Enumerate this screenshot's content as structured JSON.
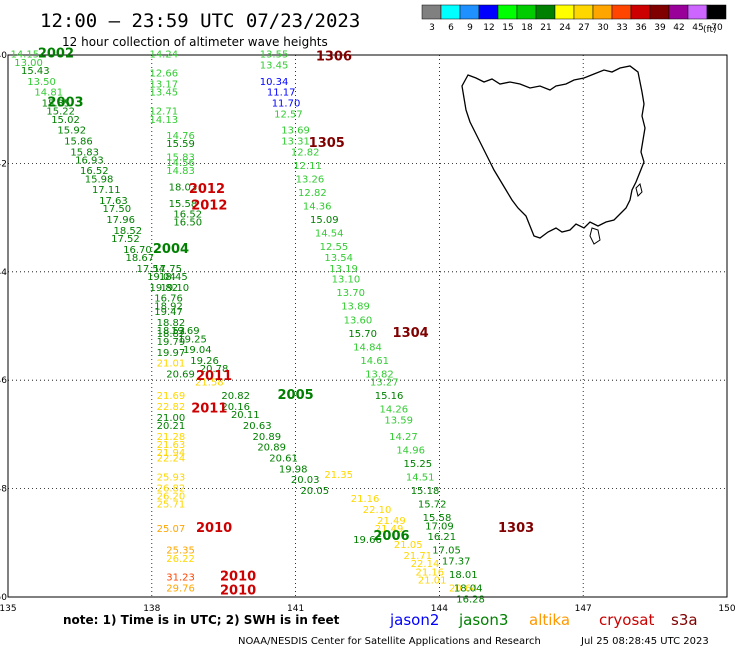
{
  "header": {
    "title": "12:00 – 23:59 UTC 07/23/2023",
    "subtitle": "12 hour collection of altimeter wave heights"
  },
  "colorbar": {
    "unit": "(ft)",
    "entries": [
      {
        "label": "3",
        "color": "#808080"
      },
      {
        "label": "6",
        "color": "#00ffff"
      },
      {
        "label": "9",
        "color": "#1e90ff"
      },
      {
        "label": "12",
        "color": "#0000ff"
      },
      {
        "label": "15",
        "color": "#00ff00"
      },
      {
        "label": "18",
        "color": "#00cc00"
      },
      {
        "label": "21",
        "color": "#008000"
      },
      {
        "label": "24",
        "color": "#ffff00"
      },
      {
        "label": "27",
        "color": "#ffd700"
      },
      {
        "label": "30",
        "color": "#ffa500"
      },
      {
        "label": "33",
        "color": "#ff4500"
      },
      {
        "label": "36",
        "color": "#cc0000"
      },
      {
        "label": "39",
        "color": "#800000"
      },
      {
        "label": "42",
        "color": "#990099"
      },
      {
        "label": "45",
        "color": "#cc66ff"
      },
      {
        "label": "70",
        "color": "#000000"
      }
    ]
  },
  "footer": {
    "note": "note: 1) Time is in UTC; 2) SWH is in feet",
    "legend": [
      {
        "label": "jason2",
        "color": "#0000ff"
      },
      {
        "label": "jason3",
        "color": "#008000"
      },
      {
        "label": "altika",
        "color": "#ff9900"
      },
      {
        "label": "cryosat",
        "color": "#cc0000"
      },
      {
        "label": "s3a",
        "color": "#800000"
      }
    ],
    "credit": "NOAA/NESDIS Center for Satellite Applications and Research",
    "timestamp": "Jul 25 08:28:45 UTC 2023"
  },
  "chart_data": {
    "type": "scatter",
    "xlim": [
      135,
      150
    ],
    "ylim": [
      -50,
      -40
    ],
    "xticks": [
      135,
      138,
      141,
      144,
      147,
      150
    ],
    "yticks": [
      -40,
      -42,
      -44,
      -46,
      -48,
      -50
    ],
    "grid": true,
    "labels": [
      {
        "x": 135.35,
        "y": -40.05,
        "t": "14.15",
        "c": "#33cc33"
      },
      {
        "x": 135.43,
        "y": -40.2,
        "t": "13.00",
        "c": "#33cc33"
      },
      {
        "x": 135.57,
        "y": -40.35,
        "t": "15.43",
        "c": "#008000"
      },
      {
        "x": 135.7,
        "y": -40.55,
        "t": "13.50",
        "c": "#33cc33"
      },
      {
        "x": 135.85,
        "y": -40.75,
        "t": "14.81",
        "c": "#33cc33"
      },
      {
        "x": 136.0,
        "y": -40.95,
        "t": "15.35",
        "c": "#008000"
      },
      {
        "x": 136.1,
        "y": -41.1,
        "t": "15.22",
        "c": "#008000"
      },
      {
        "x": 136.2,
        "y": -41.25,
        "t": "15.02",
        "c": "#008000"
      },
      {
        "x": 136.33,
        "y": -41.45,
        "t": "15.92",
        "c": "#008000"
      },
      {
        "x": 136.47,
        "y": -41.65,
        "t": "15.86",
        "c": "#008000"
      },
      {
        "x": 136.6,
        "y": -41.85,
        "t": "15.83",
        "c": "#008000"
      },
      {
        "x": 136.7,
        "y": -42.0,
        "t": "16.93",
        "c": "#008000"
      },
      {
        "x": 136.8,
        "y": -42.2,
        "t": "16.52",
        "c": "#008000"
      },
      {
        "x": 136.9,
        "y": -42.35,
        "t": "15.98",
        "c": "#008000"
      },
      {
        "x": 137.05,
        "y": -42.55,
        "t": "17.11",
        "c": "#008000"
      },
      {
        "x": 137.2,
        "y": -42.75,
        "t": "17.63",
        "c": "#008000"
      },
      {
        "x": 137.27,
        "y": -42.9,
        "t": "17.50",
        "c": "#008000"
      },
      {
        "x": 137.35,
        "y": -43.1,
        "t": "17.96",
        "c": "#008000"
      },
      {
        "x": 137.5,
        "y": -43.3,
        "t": "18.52",
        "c": "#008000"
      },
      {
        "x": 137.45,
        "y": -43.45,
        "t": "17.52",
        "c": "#008000"
      },
      {
        "x": 137.7,
        "y": -43.65,
        "t": "16.70",
        "c": "#008000"
      },
      {
        "x": 137.75,
        "y": -43.8,
        "t": "18.67",
        "c": "#008000"
      },
      {
        "x": 137.98,
        "y": -44.0,
        "t": "17.54",
        "c": "#008000"
      },
      {
        "x": 138.33,
        "y": -44.0,
        "t": "17.75",
        "c": "#008000"
      },
      {
        "x": 138.2,
        "y": -44.15,
        "t": "19.04",
        "c": "#008000"
      },
      {
        "x": 138.45,
        "y": -44.15,
        "t": "18.45",
        "c": "#008000"
      },
      {
        "x": 138.25,
        "y": -44.35,
        "t": "19.82",
        "c": "#008000"
      },
      {
        "x": 138.48,
        "y": -44.35,
        "t": "19.10",
        "c": "#008000"
      },
      {
        "x": 138.35,
        "y": -44.55,
        "t": "16.76",
        "c": "#008000"
      },
      {
        "x": 138.35,
        "y": -44.7,
        "t": "18.92",
        "c": "#008000"
      },
      {
        "x": 138.35,
        "y": -44.8,
        "t": "19.47",
        "c": "#008000"
      },
      {
        "x": 138.4,
        "y": -45.0,
        "t": "18.82",
        "c": "#008000"
      },
      {
        "x": 138.4,
        "y": -45.15,
        "t": "18.52",
        "c": "#008000"
      },
      {
        "x": 138.7,
        "y": -45.15,
        "t": "19.69",
        "c": "#008000"
      },
      {
        "x": 138.4,
        "y": -45.2,
        "t": "18.82",
        "c": "#008000"
      },
      {
        "x": 138.4,
        "y": -45.35,
        "t": "19.79",
        "c": "#008000"
      },
      {
        "x": 138.85,
        "y": -45.3,
        "t": "19.25",
        "c": "#008000"
      },
      {
        "x": 138.95,
        "y": -45.5,
        "t": "19.04",
        "c": "#008000"
      },
      {
        "x": 138.4,
        "y": -45.55,
        "t": "19.97",
        "c": "#008000"
      },
      {
        "x": 139.1,
        "y": -45.7,
        "t": "19.26",
        "c": "#008000"
      },
      {
        "x": 138.4,
        "y": -45.75,
        "t": "21.01",
        "c": "#ffd700"
      },
      {
        "x": 139.3,
        "y": -45.85,
        "t": "20.78",
        "c": "#008000"
      },
      {
        "x": 138.6,
        "y": -45.95,
        "t": "20.69",
        "c": "#008000"
      },
      {
        "x": 139.2,
        "y": -46.1,
        "t": "21.58",
        "c": "#ffd700"
      },
      {
        "x": 138.4,
        "y": -46.35,
        "t": "21.69",
        "c": "#ffd700"
      },
      {
        "x": 139.75,
        "y": -46.35,
        "t": "20.82",
        "c": "#008000"
      },
      {
        "x": 138.4,
        "y": -46.55,
        "t": "22.82",
        "c": "#ffd700"
      },
      {
        "x": 139.75,
        "y": -46.55,
        "t": "20.16",
        "c": "#008000"
      },
      {
        "x": 138.4,
        "y": -46.75,
        "t": "21.00",
        "c": "#008000"
      },
      {
        "x": 139.95,
        "y": -46.7,
        "t": "20.11",
        "c": "#008000"
      },
      {
        "x": 138.4,
        "y": -46.9,
        "t": "20.21",
        "c": "#008000"
      },
      {
        "x": 140.2,
        "y": -46.9,
        "t": "20.63",
        "c": "#008000"
      },
      {
        "x": 138.4,
        "y": -47.1,
        "t": "21.28",
        "c": "#ffd700"
      },
      {
        "x": 140.4,
        "y": -47.1,
        "t": "20.89",
        "c": "#008000"
      },
      {
        "x": 138.4,
        "y": -47.25,
        "t": "21.63",
        "c": "#ffd700"
      },
      {
        "x": 140.5,
        "y": -47.3,
        "t": "20.89",
        "c": "#008000"
      },
      {
        "x": 138.4,
        "y": -47.4,
        "t": "21.94",
        "c": "#ffd700"
      },
      {
        "x": 140.75,
        "y": -47.5,
        "t": "20.61",
        "c": "#008000"
      },
      {
        "x": 138.4,
        "y": -47.5,
        "t": "22.24",
        "c": "#ffd700"
      },
      {
        "x": 140.95,
        "y": -47.7,
        "t": "19.98",
        "c": "#008000"
      },
      {
        "x": 141.9,
        "y": -47.8,
        "t": "21.35",
        "c": "#ffd700"
      },
      {
        "x": 138.4,
        "y": -47.85,
        "t": "25.93",
        "c": "#ffd700"
      },
      {
        "x": 141.2,
        "y": -47.9,
        "t": "20.03",
        "c": "#008000"
      },
      {
        "x": 138.4,
        "y": -48.05,
        "t": "26.82",
        "c": "#ffd700"
      },
      {
        "x": 141.4,
        "y": -48.1,
        "t": "20.05",
        "c": "#008000"
      },
      {
        "x": 138.4,
        "y": -48.2,
        "t": "26.20",
        "c": "#ffd700"
      },
      {
        "x": 138.4,
        "y": -48.35,
        "t": "25.71",
        "c": "#ffd700"
      },
      {
        "x": 142.45,
        "y": -48.25,
        "t": "21.16",
        "c": "#ffd700"
      },
      {
        "x": 142.7,
        "y": -48.45,
        "t": "22.10",
        "c": "#ffd700"
      },
      {
        "x": 143.0,
        "y": -48.65,
        "t": "21.49",
        "c": "#ffd700"
      },
      {
        "x": 142.95,
        "y": -48.8,
        "t": "21.49",
        "c": "#ffd700"
      },
      {
        "x": 138.4,
        "y": -48.8,
        "t": "25.07",
        "c": "#ffa500"
      },
      {
        "x": 142.5,
        "y": -49.0,
        "t": "19.66",
        "c": "#008000"
      },
      {
        "x": 143.35,
        "y": -49.1,
        "t": "21.05",
        "c": "#ffd700"
      },
      {
        "x": 138.6,
        "y": -49.2,
        "t": "25.35",
        "c": "#ffa500"
      },
      {
        "x": 138.6,
        "y": -49.35,
        "t": "26.22",
        "c": "#ffd700"
      },
      {
        "x": 143.55,
        "y": -49.3,
        "t": "21.71",
        "c": "#ffd700"
      },
      {
        "x": 143.7,
        "y": -49.45,
        "t": "22.14",
        "c": "#ffd700"
      },
      {
        "x": 143.8,
        "y": -49.6,
        "t": "21.16",
        "c": "#ffd700"
      },
      {
        "x": 143.85,
        "y": -49.75,
        "t": "21.01",
        "c": "#ffd700"
      },
      {
        "x": 138.6,
        "y": -49.7,
        "t": "31.23",
        "c": "#ff4500"
      },
      {
        "x": 138.6,
        "y": -49.9,
        "t": "29.76",
        "c": "#ffa500"
      },
      {
        "x": 144.5,
        "y": -49.9,
        "t": "20.64",
        "c": "#ffd700"
      },
      {
        "x": 138.25,
        "y": -40.05,
        "t": "14.24",
        "c": "#33cc33"
      },
      {
        "x": 138.25,
        "y": -40.4,
        "t": "12.66",
        "c": "#33cc33"
      },
      {
        "x": 138.25,
        "y": -40.6,
        "t": "13.17",
        "c": "#33cc33"
      },
      {
        "x": 138.25,
        "y": -40.75,
        "t": "13.45",
        "c": "#33cc33"
      },
      {
        "x": 138.25,
        "y": -41.1,
        "t": "12.71",
        "c": "#33cc33"
      },
      {
        "x": 138.25,
        "y": -41.25,
        "t": "14.13",
        "c": "#33cc33"
      },
      {
        "x": 138.6,
        "y": -41.55,
        "t": "14.76",
        "c": "#33cc33"
      },
      {
        "x": 138.6,
        "y": -41.7,
        "t": "15.59",
        "c": "#008000"
      },
      {
        "x": 138.6,
        "y": -41.95,
        "t": "15.83",
        "c": "#33cc33"
      },
      {
        "x": 138.6,
        "y": -42.05,
        "t": "14.56",
        "c": "#33cc33"
      },
      {
        "x": 138.6,
        "y": -42.2,
        "t": "14.83",
        "c": "#33cc33"
      },
      {
        "x": 138.65,
        "y": -42.5,
        "t": "18.03",
        "c": "#008000"
      },
      {
        "x": 138.65,
        "y": -42.8,
        "t": "15.58",
        "c": "#008000"
      },
      {
        "x": 138.75,
        "y": -43.0,
        "t": "16.52",
        "c": "#008000"
      },
      {
        "x": 138.75,
        "y": -43.15,
        "t": "16.50",
        "c": "#008000"
      },
      {
        "x": 140.55,
        "y": -40.05,
        "t": "13.55",
        "c": "#33cc33"
      },
      {
        "x": 140.55,
        "y": -40.25,
        "t": "13.45",
        "c": "#33cc33"
      },
      {
        "x": 140.55,
        "y": -40.55,
        "t": "10.34",
        "c": "#0000ff"
      },
      {
        "x": 140.7,
        "y": -40.75,
        "t": "11.17",
        "c": "#0000ff"
      },
      {
        "x": 140.8,
        "y": -40.95,
        "t": "11.70",
        "c": "#0000ff"
      },
      {
        "x": 140.85,
        "y": -41.15,
        "t": "12.57",
        "c": "#33cc33"
      },
      {
        "x": 141.0,
        "y": -41.45,
        "t": "13.69",
        "c": "#33cc33"
      },
      {
        "x": 141.0,
        "y": -41.65,
        "t": "13.31",
        "c": "#33cc33"
      },
      {
        "x": 141.2,
        "y": -41.85,
        "t": "12.82",
        "c": "#33cc33"
      },
      {
        "x": 141.25,
        "y": -42.1,
        "t": "12.11",
        "c": "#33cc33"
      },
      {
        "x": 141.3,
        "y": -42.35,
        "t": "13.26",
        "c": "#33cc33"
      },
      {
        "x": 141.35,
        "y": -42.6,
        "t": "12.82",
        "c": "#33cc33"
      },
      {
        "x": 141.45,
        "y": -42.85,
        "t": "14.36",
        "c": "#33cc33"
      },
      {
        "x": 141.6,
        "y": -43.1,
        "t": "15.09",
        "c": "#008000"
      },
      {
        "x": 141.7,
        "y": -43.35,
        "t": "14.54",
        "c": "#33cc33"
      },
      {
        "x": 141.8,
        "y": -43.6,
        "t": "12.55",
        "c": "#33cc33"
      },
      {
        "x": 141.9,
        "y": -43.8,
        "t": "13.54",
        "c": "#33cc33"
      },
      {
        "x": 142.0,
        "y": -44.0,
        "t": "13.19",
        "c": "#33cc33"
      },
      {
        "x": 142.05,
        "y": -44.2,
        "t": "13.10",
        "c": "#33cc33"
      },
      {
        "x": 142.15,
        "y": -44.45,
        "t": "13.70",
        "c": "#33cc33"
      },
      {
        "x": 142.25,
        "y": -44.7,
        "t": "13.89",
        "c": "#33cc33"
      },
      {
        "x": 142.3,
        "y": -44.95,
        "t": "13.60",
        "c": "#33cc33"
      },
      {
        "x": 142.4,
        "y": -45.2,
        "t": "15.70",
        "c": "#008000"
      },
      {
        "x": 142.5,
        "y": -45.45,
        "t": "14.84",
        "c": "#33cc33"
      },
      {
        "x": 142.65,
        "y": -45.7,
        "t": "14.61",
        "c": "#33cc33"
      },
      {
        "x": 142.75,
        "y": -45.95,
        "t": "13.82",
        "c": "#33cc33"
      },
      {
        "x": 142.85,
        "y": -46.1,
        "t": "13.27",
        "c": "#33cc33"
      },
      {
        "x": 142.95,
        "y": -46.35,
        "t": "15.16",
        "c": "#008000"
      },
      {
        "x": 143.05,
        "y": -46.6,
        "t": "14.26",
        "c": "#33cc33"
      },
      {
        "x": 143.15,
        "y": -46.8,
        "t": "13.59",
        "c": "#33cc33"
      },
      {
        "x": 143.25,
        "y": -47.1,
        "t": "14.27",
        "c": "#33cc33"
      },
      {
        "x": 143.4,
        "y": -47.35,
        "t": "14.96",
        "c": "#33cc33"
      },
      {
        "x": 143.55,
        "y": -47.6,
        "t": "15.25",
        "c": "#008000"
      },
      {
        "x": 143.6,
        "y": -47.85,
        "t": "14.51",
        "c": "#33cc33"
      },
      {
        "x": 143.7,
        "y": -48.1,
        "t": "15.18",
        "c": "#008000"
      },
      {
        "x": 143.85,
        "y": -48.35,
        "t": "15.72",
        "c": "#008000"
      },
      {
        "x": 143.95,
        "y": -48.6,
        "t": "15.58",
        "c": "#008000"
      },
      {
        "x": 144.0,
        "y": -48.75,
        "t": "17.09",
        "c": "#008000"
      },
      {
        "x": 144.05,
        "y": -48.95,
        "t": "16.21",
        "c": "#008000"
      },
      {
        "x": 144.15,
        "y": -49.2,
        "t": "17.05",
        "c": "#008000"
      },
      {
        "x": 144.35,
        "y": -49.4,
        "t": "17.37",
        "c": "#008000"
      },
      {
        "x": 144.5,
        "y": -49.65,
        "t": "18.01",
        "c": "#008000"
      },
      {
        "x": 144.6,
        "y": -49.9,
        "t": "18.04",
        "c": "#008000"
      },
      {
        "x": 144.65,
        "y": -50.1,
        "t": "16.28",
        "c": "#008000"
      }
    ],
    "time_labels": [
      {
        "x": 136.0,
        "y": -40.05,
        "t": "2002",
        "c": "#008000"
      },
      {
        "x": 136.2,
        "y": -40.95,
        "t": "2003",
        "c": "#008000"
      },
      {
        "x": 139.15,
        "y": -42.55,
        "t": "2012",
        "c": "#cc0000"
      },
      {
        "x": 139.2,
        "y": -42.85,
        "t": "2012",
        "c": "#cc0000"
      },
      {
        "x": 138.4,
        "y": -43.65,
        "t": "2004",
        "c": "#008000"
      },
      {
        "x": 139.3,
        "y": -46.0,
        "t": "2011",
        "c": "#cc0000"
      },
      {
        "x": 139.2,
        "y": -46.6,
        "t": "2011",
        "c": "#cc0000"
      },
      {
        "x": 141.0,
        "y": -46.35,
        "t": "2005",
        "c": "#008000"
      },
      {
        "x": 143.0,
        "y": -48.95,
        "t": "2006",
        "c": "#008000"
      },
      {
        "x": 139.3,
        "y": -48.8,
        "t": "2010",
        "c": "#cc0000"
      },
      {
        "x": 139.8,
        "y": -49.7,
        "t": "2010",
        "c": "#cc0000"
      },
      {
        "x": 139.8,
        "y": -49.95,
        "t": "2010",
        "c": "#cc0000"
      },
      {
        "x": 141.8,
        "y": -40.1,
        "t": "1306",
        "c": "#800000"
      },
      {
        "x": 141.65,
        "y": -41.7,
        "t": "1305",
        "c": "#800000"
      },
      {
        "x": 143.4,
        "y": -45.2,
        "t": "1304",
        "c": "#800000"
      },
      {
        "x": 145.6,
        "y": -48.8,
        "t": "1303",
        "c": "#800000"
      }
    ]
  }
}
